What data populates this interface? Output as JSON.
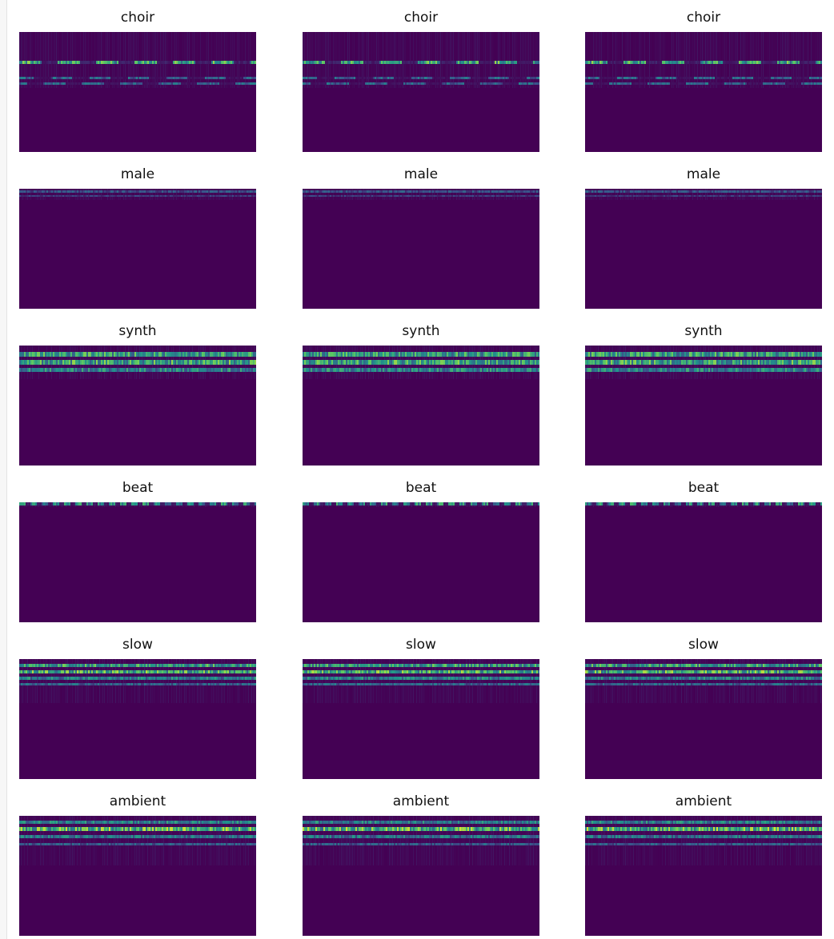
{
  "chart_data": {
    "type": "heatmap",
    "colormap": "viridis",
    "background_color": "#440154",
    "grid": false,
    "rows": 6,
    "columns": 3,
    "panels": [
      {
        "title": "choir",
        "class": "choir"
      },
      {
        "title": "choir",
        "class": "choir"
      },
      {
        "title": "choir",
        "class": "choir"
      },
      {
        "title": "male",
        "class": "male"
      },
      {
        "title": "male",
        "class": "male"
      },
      {
        "title": "male",
        "class": "male"
      },
      {
        "title": "synth",
        "class": "synth"
      },
      {
        "title": "synth",
        "class": "synth"
      },
      {
        "title": "synth",
        "class": "synth"
      },
      {
        "title": "beat",
        "class": "beat"
      },
      {
        "title": "beat",
        "class": "beat"
      },
      {
        "title": "beat",
        "class": "beat"
      },
      {
        "title": "slow",
        "class": "slow"
      },
      {
        "title": "slow",
        "class": "slow"
      },
      {
        "title": "slow",
        "class": "slow"
      },
      {
        "title": "ambient",
        "class": "ambient"
      },
      {
        "title": "ambient",
        "class": "ambient"
      },
      {
        "title": "ambient",
        "class": "ambient"
      }
    ]
  }
}
